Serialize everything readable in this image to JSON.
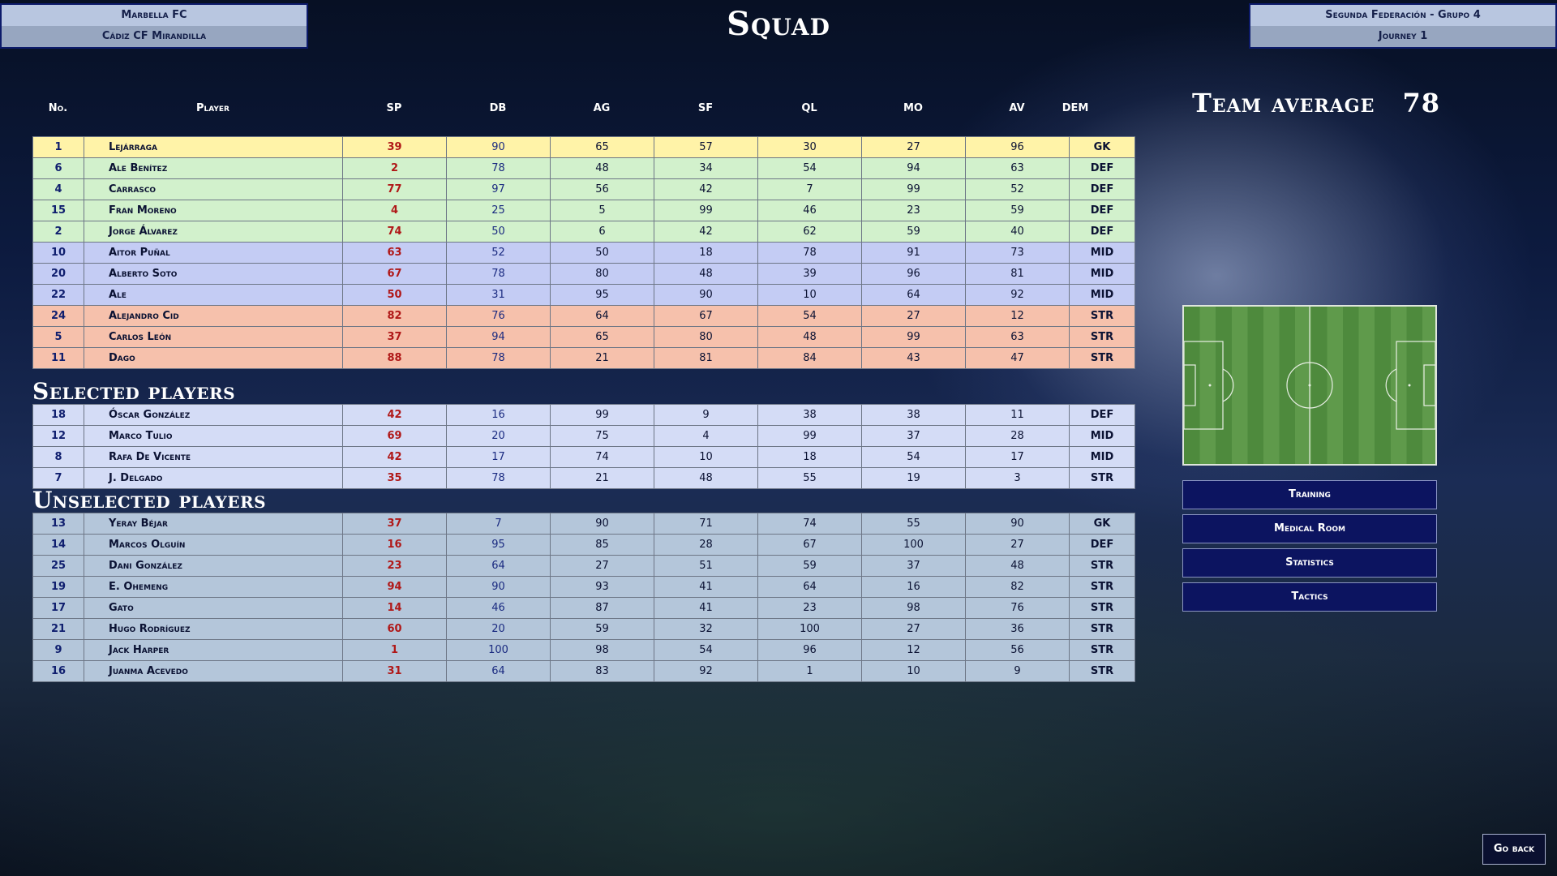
{
  "header": {
    "left": {
      "team": "Marbella FC",
      "opponent": "Cádiz CF Mirandilla"
    },
    "title": "Squad",
    "right": {
      "league": "Segunda Federación - Grupo 4",
      "journey": "Journey 1"
    }
  },
  "columns": [
    "No.",
    "Player",
    "SP",
    "DB",
    "AG",
    "SF",
    "QL",
    "MO",
    "AV",
    "DEM"
  ],
  "lineup": [
    {
      "no": "1",
      "name": "Lejárraga",
      "sp": "39",
      "db": "90",
      "ag": "65",
      "sf": "57",
      "ql": "30",
      "mo": "27",
      "av": "96",
      "dem": "GK"
    },
    {
      "no": "6",
      "name": "Ale Benítez",
      "sp": "2",
      "db": "78",
      "ag": "48",
      "sf": "34",
      "ql": "54",
      "mo": "94",
      "av": "63",
      "dem": "DEF"
    },
    {
      "no": "4",
      "name": "Carrasco",
      "sp": "77",
      "db": "97",
      "ag": "56",
      "sf": "42",
      "ql": "7",
      "mo": "99",
      "av": "52",
      "dem": "DEF"
    },
    {
      "no": "15",
      "name": "Fran Moreno",
      "sp": "4",
      "db": "25",
      "ag": "5",
      "sf": "99",
      "ql": "46",
      "mo": "23",
      "av": "59",
      "dem": "DEF"
    },
    {
      "no": "2",
      "name": "Jorge Álvarez",
      "sp": "74",
      "db": "50",
      "ag": "6",
      "sf": "42",
      "ql": "62",
      "mo": "59",
      "av": "40",
      "dem": "DEF"
    },
    {
      "no": "10",
      "name": "Aitor Puñal",
      "sp": "63",
      "db": "52",
      "ag": "50",
      "sf": "18",
      "ql": "78",
      "mo": "91",
      "av": "73",
      "dem": "MID"
    },
    {
      "no": "20",
      "name": "Alberto Soto",
      "sp": "67",
      "db": "78",
      "ag": "80",
      "sf": "48",
      "ql": "39",
      "mo": "96",
      "av": "81",
      "dem": "MID"
    },
    {
      "no": "22",
      "name": "Ale",
      "sp": "50",
      "db": "31",
      "ag": "95",
      "sf": "90",
      "ql": "10",
      "mo": "64",
      "av": "92",
      "dem": "MID"
    },
    {
      "no": "24",
      "name": "Alejandro Cid",
      "sp": "82",
      "db": "76",
      "ag": "64",
      "sf": "67",
      "ql": "54",
      "mo": "27",
      "av": "12",
      "dem": "STR"
    },
    {
      "no": "5",
      "name": "Carlos León",
      "sp": "37",
      "db": "94",
      "ag": "65",
      "sf": "80",
      "ql": "48",
      "mo": "99",
      "av": "63",
      "dem": "STR"
    },
    {
      "no": "11",
      "name": "Dago",
      "sp": "88",
      "db": "78",
      "ag": "21",
      "sf": "81",
      "ql": "84",
      "mo": "43",
      "av": "47",
      "dem": "STR"
    }
  ],
  "selected_title": "Selected players",
  "selected": [
    {
      "no": "18",
      "name": "Óscar González",
      "sp": "42",
      "db": "16",
      "ag": "99",
      "sf": "9",
      "ql": "38",
      "mo": "38",
      "av": "11",
      "dem": "DEF"
    },
    {
      "no": "12",
      "name": "Marco Tulio",
      "sp": "69",
      "db": "20",
      "ag": "75",
      "sf": "4",
      "ql": "99",
      "mo": "37",
      "av": "28",
      "dem": "MID"
    },
    {
      "no": "8",
      "name": "Rafa De Vicente",
      "sp": "42",
      "db": "17",
      "ag": "74",
      "sf": "10",
      "ql": "18",
      "mo": "54",
      "av": "17",
      "dem": "MID"
    },
    {
      "no": "7",
      "name": "J. Delgado",
      "sp": "35",
      "db": "78",
      "ag": "21",
      "sf": "48",
      "ql": "55",
      "mo": "19",
      "av": "3",
      "dem": "STR"
    }
  ],
  "unselected_title": "Unselected players",
  "unselected": [
    {
      "no": "13",
      "name": "Yeray Béjar",
      "sp": "37",
      "db": "7",
      "ag": "90",
      "sf": "71",
      "ql": "74",
      "mo": "55",
      "av": "90",
      "dem": "GK"
    },
    {
      "no": "14",
      "name": "Marcos Olguín",
      "sp": "16",
      "db": "95",
      "ag": "85",
      "sf": "28",
      "ql": "67",
      "mo": "100",
      "av": "27",
      "dem": "DEF"
    },
    {
      "no": "25",
      "name": "Dani González",
      "sp": "23",
      "db": "64",
      "ag": "27",
      "sf": "51",
      "ql": "59",
      "mo": "37",
      "av": "48",
      "dem": "STR"
    },
    {
      "no": "19",
      "name": "E. Ohemeng",
      "sp": "94",
      "db": "90",
      "ag": "93",
      "sf": "41",
      "ql": "64",
      "mo": "16",
      "av": "82",
      "dem": "STR"
    },
    {
      "no": "17",
      "name": "Gato",
      "sp": "14",
      "db": "46",
      "ag": "87",
      "sf": "41",
      "ql": "23",
      "mo": "98",
      "av": "76",
      "dem": "STR"
    },
    {
      "no": "21",
      "name": "Hugo Rodríguez",
      "sp": "60",
      "db": "20",
      "ag": "59",
      "sf": "32",
      "ql": "100",
      "mo": "27",
      "av": "36",
      "dem": "STR"
    },
    {
      "no": "9",
      "name": "Jack Harper",
      "sp": "1",
      "db": "100",
      "ag": "98",
      "sf": "54",
      "ql": "96",
      "mo": "12",
      "av": "56",
      "dem": "STR"
    },
    {
      "no": "16",
      "name": "Juanma Acevedo",
      "sp": "31",
      "db": "64",
      "ag": "83",
      "sf": "92",
      "ql": "1",
      "mo": "10",
      "av": "9",
      "dem": "STR"
    }
  ],
  "team_average": {
    "label": "Team average",
    "value": "78"
  },
  "menu": [
    "Training",
    "Medical Room",
    "Statistics",
    "Tactics"
  ],
  "go_back": "Go back",
  "colors": {
    "gk": "#fff3a8",
    "def": "#d2f1cc",
    "mid": "#c4ccf4",
    "str": "#f6c1ac",
    "selected": "#d4dcf6",
    "unselected": "#b4c6da",
    "button": "#0c1460"
  }
}
